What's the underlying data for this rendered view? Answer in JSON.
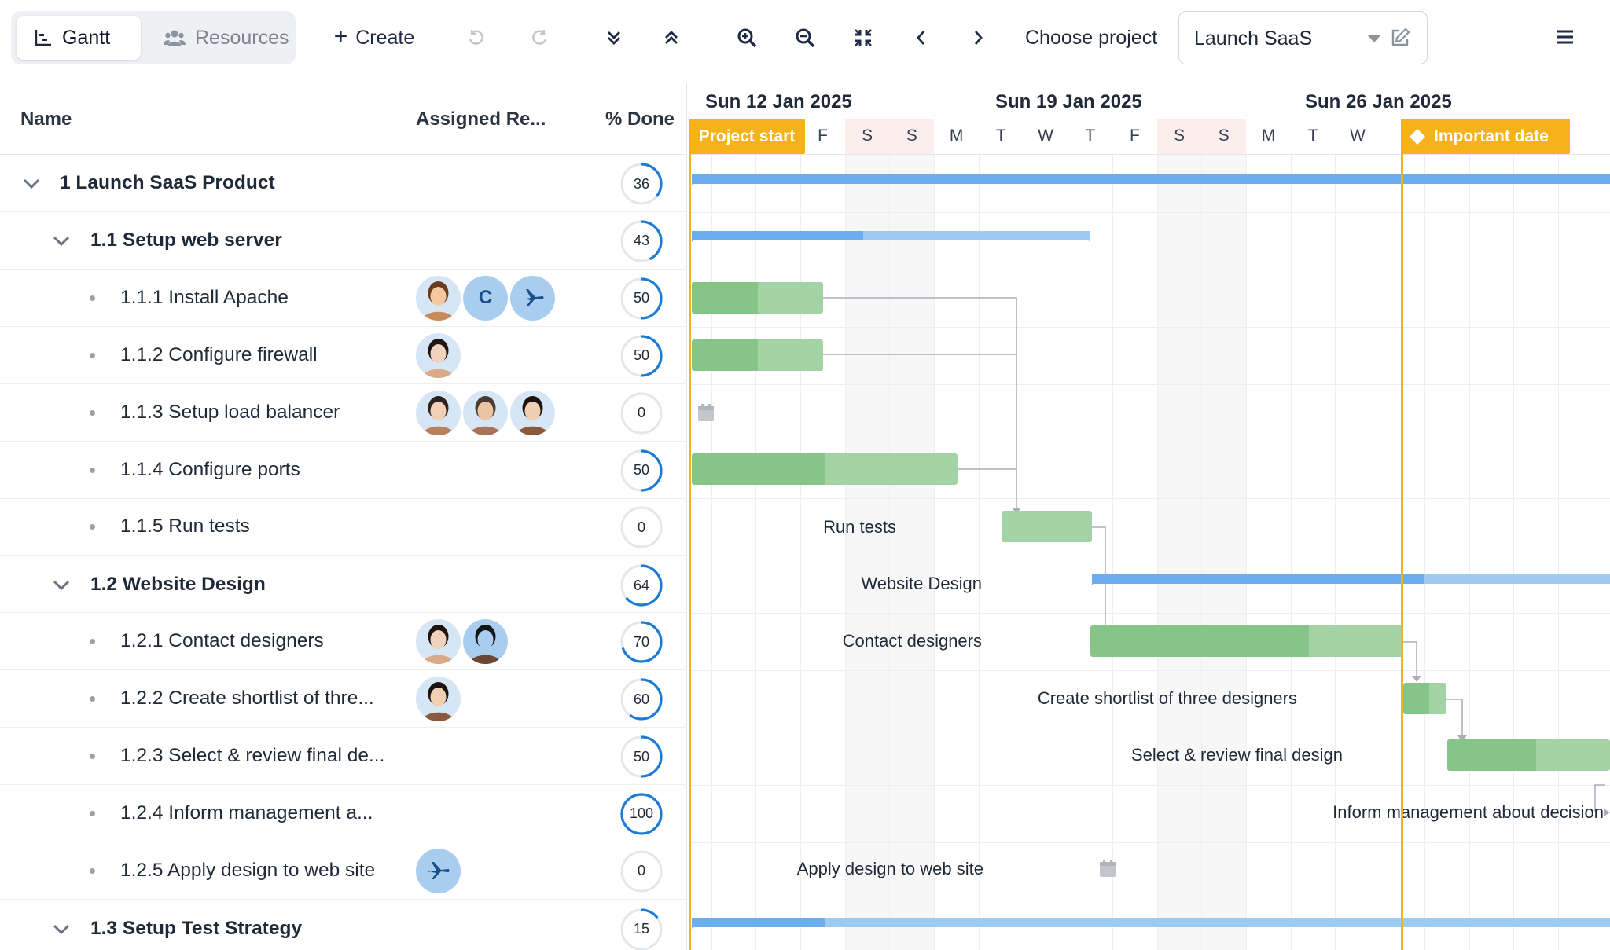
{
  "toolbar": {
    "tab_gantt": "Gantt",
    "tab_resources": "Resources",
    "create_label": "Create",
    "choose_project_label": "Choose project",
    "project_value": "Launch SaaS"
  },
  "grid": {
    "columns": {
      "name": "Name",
      "assigned": "Assigned Re...",
      "done": "% Done"
    },
    "rows": [
      {
        "name": "1 Launch SaaS Product",
        "percent": "36",
        "progress": 36,
        "level": 0,
        "parent": true
      },
      {
        "name": "1.1 Setup web server",
        "percent": "43",
        "progress": 43,
        "level": 1,
        "parent": true
      },
      {
        "name": "1.1.1 Install Apache",
        "percent": "50",
        "progress": 50,
        "level": 2,
        "avatars": [
          "photo-woman-curly",
          "initial-c",
          "plane"
        ],
        "initial": "C"
      },
      {
        "name": "1.1.2 Configure firewall",
        "percent": "50",
        "progress": 50,
        "level": 2,
        "avatars": [
          "photo-woman-dark-hair"
        ]
      },
      {
        "name": "1.1.3 Setup load balancer",
        "percent": "0",
        "progress": 0,
        "level": 2,
        "avatars": [
          "photo-man-glasses",
          "photo-man-beard",
          "photo-man-smile"
        ]
      },
      {
        "name": "1.1.4 Configure ports",
        "percent": "50",
        "progress": 50,
        "level": 2
      },
      {
        "name": "1.1.5 Run tests",
        "percent": "0",
        "progress": 0,
        "level": 2
      },
      {
        "name": "1.2 Website Design",
        "percent": "64",
        "progress": 64,
        "level": 1,
        "parent": true
      },
      {
        "name": "1.2.1 Contact designers",
        "percent": "70",
        "progress": 70,
        "level": 2,
        "avatars": [
          "photo-woman-dark-hair",
          "photo-man-hat"
        ]
      },
      {
        "name": "1.2.2 Create shortlist of thre...",
        "percent": "60",
        "progress": 60,
        "level": 2,
        "avatars": [
          "photo-man-smile"
        ]
      },
      {
        "name": "1.2.3 Select & review final de...",
        "percent": "50",
        "progress": 50,
        "level": 2
      },
      {
        "name": "1.2.4 Inform management a...",
        "percent": "100",
        "progress": 100,
        "level": 2
      },
      {
        "name": "1.2.5 Apply design to web site",
        "percent": "0",
        "progress": 0,
        "level": 2,
        "avatars": [
          "plane"
        ]
      },
      {
        "name": "1.3 Setup Test Strategy",
        "percent": "15",
        "progress": 15,
        "level": 1,
        "parent": true
      }
    ]
  },
  "schedule": {
    "weeks": [
      "Sun 12 Jan 2025",
      "Sun 19 Jan 2025",
      "Sun 26 Jan 2025"
    ],
    "days": [
      "F",
      "S",
      "S",
      "M",
      "T",
      "W",
      "T",
      "F",
      "S",
      "S",
      "M",
      "T",
      "W"
    ],
    "markers": {
      "project_start": "Project start",
      "important_date": "Important date"
    },
    "task_labels": {
      "run_tests": "Run tests",
      "website_design": "Website Design",
      "contact_designers": "Contact designers",
      "create_shortlist": "Create shortlist of three designers",
      "select_review": "Select & review final design",
      "inform_management": "Inform management about decision",
      "apply_design": "Apply design to web site"
    }
  },
  "colors": {
    "accent_blue": "#1d7bd8",
    "bar_green": "#86c587",
    "bar_blue": "#6aaef0",
    "marker": "#f5b21b",
    "weekend": "#fdeeee"
  }
}
